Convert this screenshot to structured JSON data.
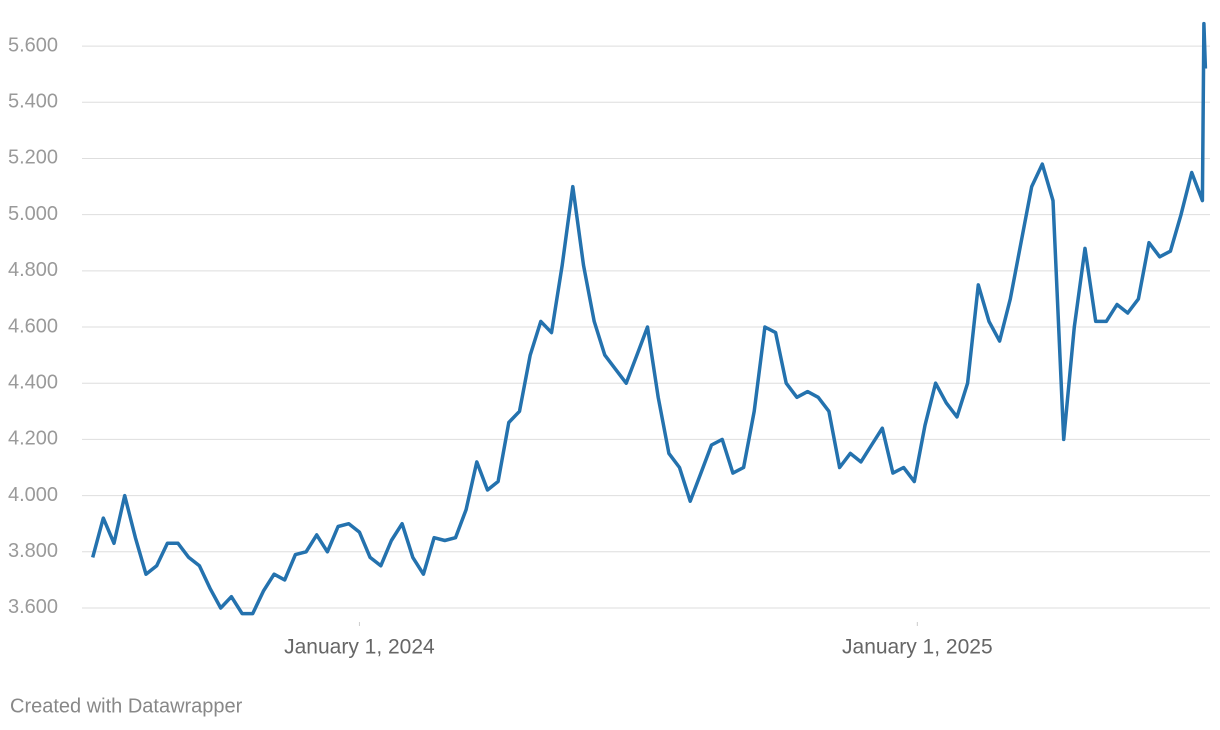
{
  "chart_data": {
    "type": "line",
    "credit": "Created with Datawrapper",
    "x": [
      "2023-07-10",
      "2023-07-17",
      "2023-07-24",
      "2023-07-31",
      "2023-08-07",
      "2023-08-14",
      "2023-08-21",
      "2023-08-28",
      "2023-09-04",
      "2023-09-11",
      "2023-09-18",
      "2023-09-25",
      "2023-10-02",
      "2023-10-09",
      "2023-10-16",
      "2023-10-23",
      "2023-10-30",
      "2023-11-06",
      "2023-11-13",
      "2023-11-20",
      "2023-11-27",
      "2023-12-04",
      "2023-12-11",
      "2023-12-18",
      "2023-12-25",
      "2024-01-01",
      "2024-01-08",
      "2024-01-15",
      "2024-01-22",
      "2024-01-29",
      "2024-02-05",
      "2024-02-12",
      "2024-02-19",
      "2024-02-26",
      "2024-03-04",
      "2024-03-11",
      "2024-03-18",
      "2024-03-25",
      "2024-04-01",
      "2024-04-08",
      "2024-04-15",
      "2024-04-22",
      "2024-04-29",
      "2024-05-06",
      "2024-05-13",
      "2024-05-20",
      "2024-05-27",
      "2024-06-03",
      "2024-06-10",
      "2024-06-17",
      "2024-06-24",
      "2024-07-01",
      "2024-07-08",
      "2024-07-15",
      "2024-07-22",
      "2024-07-29",
      "2024-08-05",
      "2024-08-12",
      "2024-08-19",
      "2024-08-26",
      "2024-09-02",
      "2024-09-09",
      "2024-09-16",
      "2024-09-23",
      "2024-09-30",
      "2024-10-07",
      "2024-10-14",
      "2024-10-21",
      "2024-10-28",
      "2024-11-04",
      "2024-11-11",
      "2024-11-18",
      "2024-11-25",
      "2024-12-02",
      "2024-12-09",
      "2024-12-16",
      "2024-12-23",
      "2024-12-30",
      "2025-01-06",
      "2025-01-13",
      "2025-01-20",
      "2025-01-27",
      "2025-02-03",
      "2025-02-10",
      "2025-02-17",
      "2025-02-24",
      "2025-03-03",
      "2025-03-10",
      "2025-03-17",
      "2025-03-24",
      "2025-03-31",
      "2025-04-07",
      "2025-04-14",
      "2025-04-21",
      "2025-04-28",
      "2025-05-05",
      "2025-05-12",
      "2025-05-19",
      "2025-05-26",
      "2025-06-02",
      "2025-06-09",
      "2025-06-16",
      "2025-06-23",
      "2025-06-30",
      "2025-07-07",
      "2025-07-08",
      "2025-07-09"
    ],
    "series": [
      {
        "color": "#2472ae",
        "values": [
          3.78,
          3.92,
          3.83,
          4.0,
          3.85,
          3.72,
          3.75,
          3.83,
          3.83,
          3.78,
          3.75,
          3.67,
          3.6,
          3.64,
          3.58,
          3.58,
          3.66,
          3.72,
          3.7,
          3.79,
          3.8,
          3.86,
          3.8,
          3.89,
          3.9,
          3.87,
          3.78,
          3.75,
          3.84,
          3.9,
          3.78,
          3.72,
          3.85,
          3.84,
          3.85,
          3.95,
          4.12,
          4.02,
          4.05,
          4.26,
          4.3,
          4.5,
          4.62,
          4.58,
          4.82,
          5.1,
          4.82,
          4.62,
          4.5,
          4.45,
          4.4,
          4.5,
          4.6,
          4.35,
          4.15,
          4.1,
          3.98,
          4.08,
          4.18,
          4.2,
          4.08,
          4.1,
          4.3,
          4.6,
          4.58,
          4.4,
          4.35,
          4.37,
          4.35,
          4.3,
          4.1,
          4.15,
          4.12,
          4.18,
          4.24,
          4.08,
          4.1,
          4.05,
          4.25,
          4.4,
          4.33,
          4.28,
          4.4,
          4.75,
          4.62,
          4.55,
          4.7,
          4.9,
          5.1,
          5.18,
          5.05,
          4.2,
          4.6,
          4.88,
          4.62,
          4.62,
          4.68,
          4.65,
          4.7,
          4.9,
          4.85,
          4.87,
          5.0,
          5.15,
          5.05,
          5.68,
          5.52
        ]
      }
    ],
    "xlim": [
      "2023-07-03",
      "2025-07-12"
    ],
    "xticks": [
      {
        "value": "2024-01-01",
        "label": "January 1, 2024"
      },
      {
        "value": "2025-01-01",
        "label": "January 1, 2025"
      }
    ],
    "ylim": [
      3.55,
      5.7
    ],
    "yticks": [
      {
        "value": 3.6,
        "label": "3.600"
      },
      {
        "value": 3.8,
        "label": "3.800"
      },
      {
        "value": 4.0,
        "label": "4.000"
      },
      {
        "value": 4.2,
        "label": "4.200"
      },
      {
        "value": 4.4,
        "label": "4.400"
      },
      {
        "value": 4.6,
        "label": "4.600"
      },
      {
        "value": 4.8,
        "label": "4.800"
      },
      {
        "value": 5.0,
        "label": "5.000"
      },
      {
        "value": 5.2,
        "label": "5.200"
      },
      {
        "value": 5.4,
        "label": "5.400"
      },
      {
        "value": 5.6,
        "label": "5.600"
      }
    ],
    "grid": true
  }
}
